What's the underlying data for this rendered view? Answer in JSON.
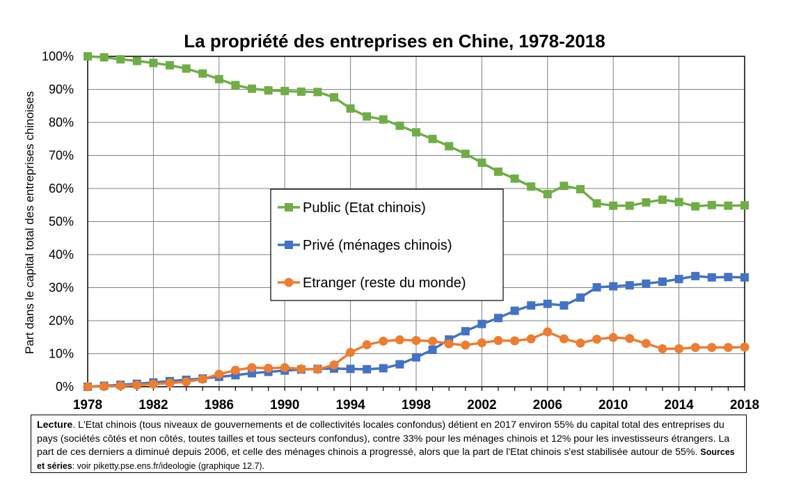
{
  "chart_data": {
    "type": "line",
    "title": "La propriété des entreprises en Chine, 1978-2018",
    "xlabel": "",
    "ylabel": "Part dans le capital total des entreprises chinoises",
    "xlim": [
      1978,
      2018
    ],
    "ylim": [
      0,
      100
    ],
    "x_ticks": [
      "1978",
      "1982",
      "1986",
      "1990",
      "1994",
      "1998",
      "2002",
      "2006",
      "2010",
      "2014",
      "2018"
    ],
    "y_ticks": [
      "0%",
      "10%",
      "20%",
      "30%",
      "40%",
      "50%",
      "60%",
      "70%",
      "80%",
      "90%",
      "100%"
    ],
    "grid": true,
    "legend_position": "center",
    "x": [
      1978,
      1979,
      1980,
      1981,
      1982,
      1983,
      1984,
      1985,
      1986,
      1987,
      1988,
      1989,
      1990,
      1991,
      1992,
      1993,
      1994,
      1995,
      1996,
      1997,
      1998,
      1999,
      2000,
      2001,
      2002,
      2003,
      2004,
      2005,
      2006,
      2007,
      2008,
      2009,
      2010,
      2011,
      2012,
      2013,
      2014,
      2015,
      2016,
      2017,
      2018
    ],
    "series": [
      {
        "name": "Public (Etat chinois)",
        "color": "#70AD47",
        "marker": "square",
        "values": [
          100,
          99.7,
          99.1,
          98.6,
          98,
          97.3,
          96.3,
          94.8,
          93.1,
          91.3,
          90.2,
          89.7,
          89.5,
          89.3,
          89.2,
          87.6,
          84.2,
          81.8,
          80.9,
          79,
          77,
          75,
          72.8,
          70.5,
          67.8,
          65.1,
          63,
          60.6,
          58.3,
          60.8,
          59.8,
          55.5,
          54.8,
          54.8,
          55.8,
          56.6,
          55.9,
          54.6,
          55,
          54.8,
          54.9
        ]
      },
      {
        "name": "Privé (ménages chinois)",
        "color": "#4472C4",
        "marker": "square",
        "values": [
          0,
          0.3,
          0.6,
          0.9,
          1.3,
          1.7,
          2.1,
          2.5,
          3,
          3.5,
          4.1,
          4.5,
          4.9,
          5.2,
          5.4,
          5.5,
          5.4,
          5.3,
          5.6,
          6.8,
          8.9,
          11.2,
          14.3,
          16.8,
          19,
          20.8,
          23,
          24.6,
          25.1,
          24.6,
          27,
          30.1,
          30.4,
          30.7,
          31.2,
          31.8,
          32.6,
          33.5,
          33.1,
          33.2,
          33.1
        ]
      },
      {
        "name": "Etranger (reste du monde)",
        "color": "#ED7D31",
        "marker": "circle",
        "values": [
          0,
          0.1,
          0.3,
          0.5,
          0.8,
          1.1,
          1.5,
          2.3,
          3.8,
          5,
          5.8,
          5.6,
          5.8,
          5.4,
          5.3,
          6.6,
          10.4,
          12.7,
          13.8,
          14.2,
          14,
          13.8,
          13,
          12.6,
          13.3,
          14,
          13.9,
          14.5,
          16.6,
          14.5,
          13.2,
          14.4,
          14.9,
          14.6,
          13.1,
          11.5,
          11.5,
          11.9,
          11.9,
          11.9,
          12
        ]
      }
    ]
  },
  "note": {
    "lecture_label": "Lecture",
    "lecture_text": ". L'Etat chinois (tous niveaux de gouvernements et de collectivités locales confondus) détient en 2017 environ 55% du capital total des entreprises du pays (sociétés côtés et non côtés, toutes tailles et tous secteurs confondus), contre 33% pour les ménages chinois et 12% pour les investisseurs étrangers. La part de ces derniers a diminué depuis 2006, et celle des ménages chinois a progressé, alors que la part de l'Etat chinois s'est stabilisée autour de 55%.",
    "sources_label": "Sources et séries",
    "sources_text": ": voir piketty.pse.ens.fr/ideologie (graphique 12.7)."
  }
}
